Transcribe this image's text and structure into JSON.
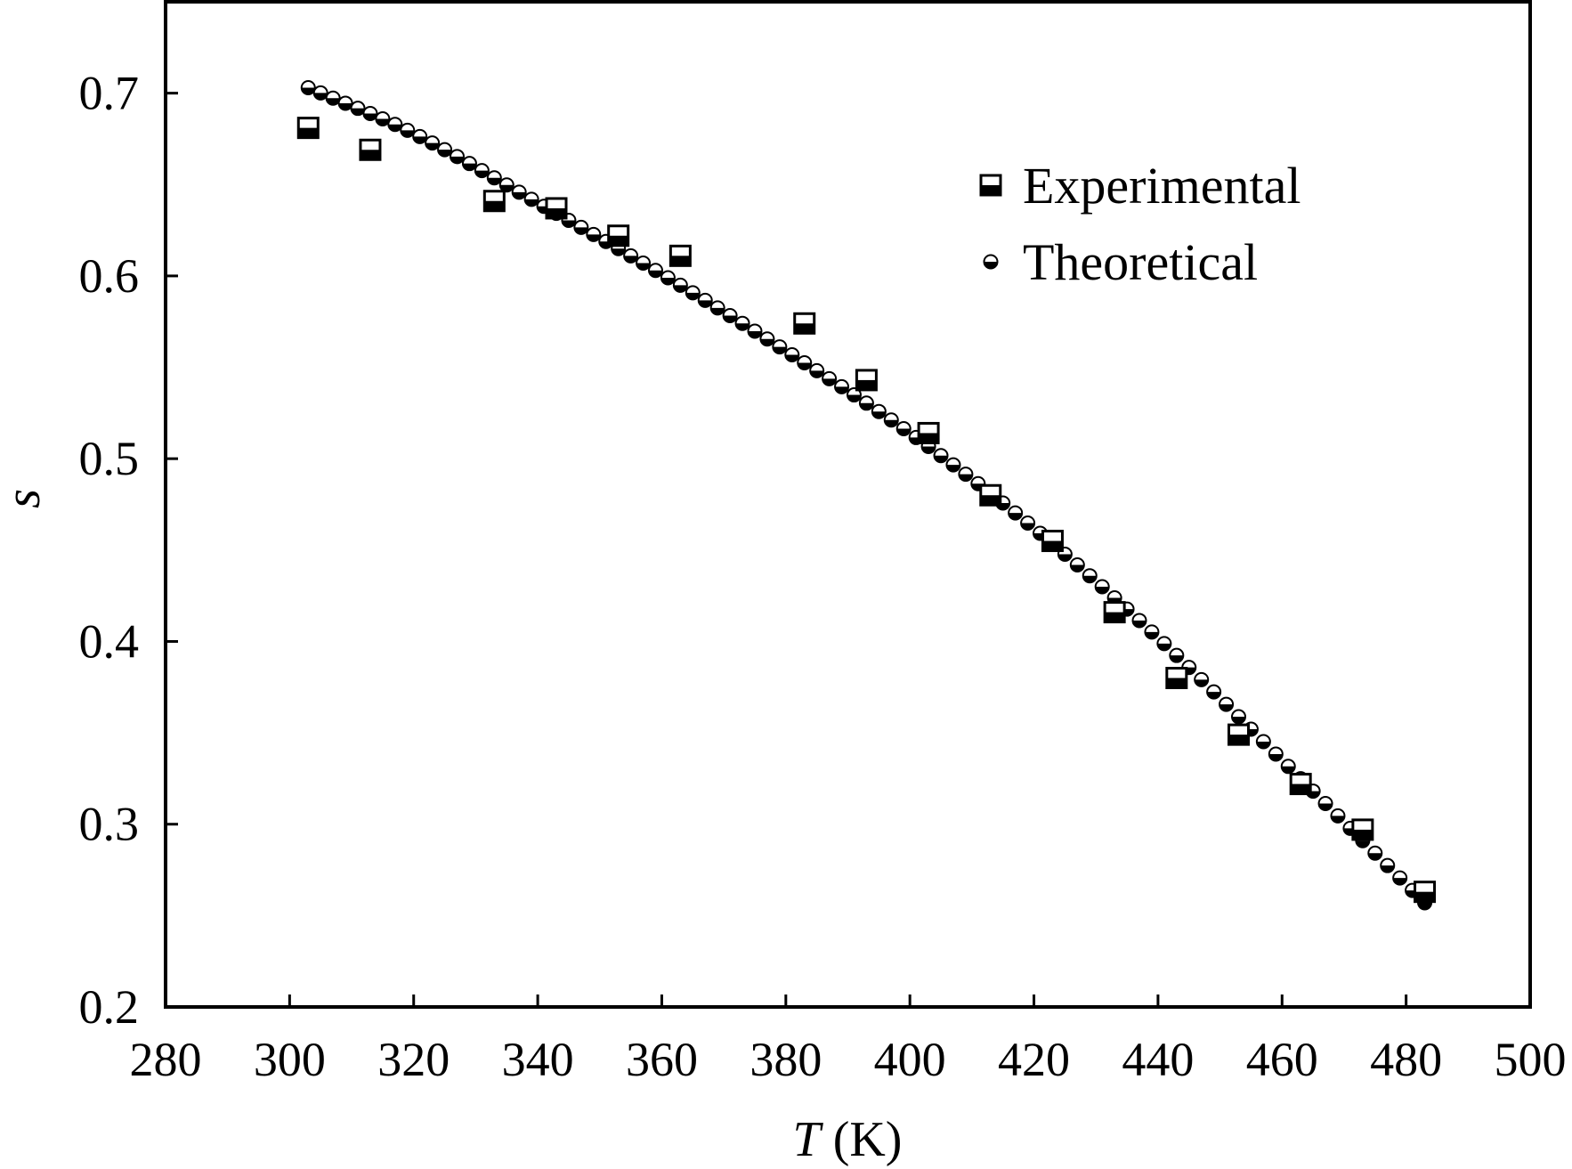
{
  "chart_data": {
    "type": "scatter",
    "xlabel_italic": "T",
    "xlabel_unit": "(K)",
    "ylabel": "s",
    "xlim": [
      280,
      500
    ],
    "ylim": [
      0.2,
      0.75
    ],
    "x_ticks": [
      280,
      300,
      320,
      340,
      360,
      380,
      400,
      420,
      440,
      460,
      480,
      500
    ],
    "y_ticks": [
      0.2,
      0.3,
      0.4,
      0.5,
      0.6,
      0.7
    ],
    "x_tick_labels": [
      "280",
      "300",
      "320",
      "340",
      "360",
      "380",
      "400",
      "420",
      "440",
      "460",
      "480",
      "500"
    ],
    "y_tick_labels": [
      "0.2",
      "0.3",
      "0.4",
      "0.5",
      "0.6",
      "0.7"
    ],
    "grid": false,
    "legend_position": "top-right",
    "series": [
      {
        "name": "Experimental",
        "marker": "half-filled-square",
        "points": [
          {
            "x": 303,
            "y": 0.681
          },
          {
            "x": 313,
            "y": 0.669
          },
          {
            "x": 333,
            "y": 0.641
          },
          {
            "x": 343,
            "y": 0.637
          },
          {
            "x": 353,
            "y": 0.622
          },
          {
            "x": 363,
            "y": 0.611
          },
          {
            "x": 383,
            "y": 0.574
          },
          {
            "x": 393,
            "y": 0.543
          },
          {
            "x": 403,
            "y": 0.514
          },
          {
            "x": 413,
            "y": 0.48
          },
          {
            "x": 423,
            "y": 0.455
          },
          {
            "x": 433,
            "y": 0.416
          },
          {
            "x": 443,
            "y": 0.38
          },
          {
            "x": 453,
            "y": 0.349
          },
          {
            "x": 463,
            "y": 0.322
          },
          {
            "x": 473,
            "y": 0.297
          },
          {
            "x": 483,
            "y": 0.263
          }
        ]
      },
      {
        "name": "Theoretical",
        "marker": "half-filled-circle",
        "x_start": 303,
        "x_end": 483,
        "x_step": 2,
        "curve_anchors": [
          {
            "x": 303,
            "y": 0.703
          },
          {
            "x": 320,
            "y": 0.678
          },
          {
            "x": 340,
            "y": 0.64
          },
          {
            "x": 360,
            "y": 0.601
          },
          {
            "x": 380,
            "y": 0.559
          },
          {
            "x": 400,
            "y": 0.514
          },
          {
            "x": 420,
            "y": 0.462
          },
          {
            "x": 440,
            "y": 0.402
          },
          {
            "x": 460,
            "y": 0.335
          },
          {
            "x": 483,
            "y": 0.257
          }
        ]
      }
    ]
  }
}
